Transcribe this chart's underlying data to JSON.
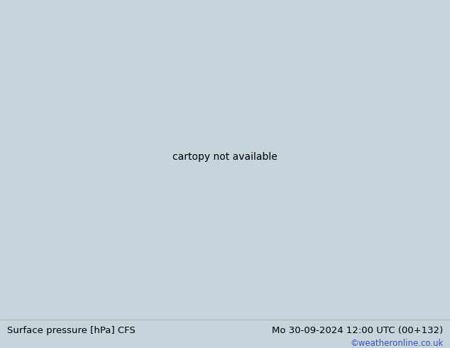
{
  "title_left": "Surface pressure [hPa] CFS",
  "title_right": "Mo 30-09-2024 12:00 UTC (00+132)",
  "copyright": "©weatheronline.co.uk",
  "bg_color": "#c8d4dc",
  "land_color": "#b4d4a0",
  "coast_color": "#888888",
  "fig_width": 6.34,
  "fig_height": 4.9,
  "dpi": 100,
  "bottom_bar_color": "#e0e0e0",
  "title_fontsize": 9.5,
  "copyright_fontsize": 8.5,
  "copyright_color": "#3355bb",
  "red": "#cc0000",
  "blue": "#2255cc",
  "black": "#000000",
  "map_extent": [
    95,
    185,
    -55,
    5
  ]
}
